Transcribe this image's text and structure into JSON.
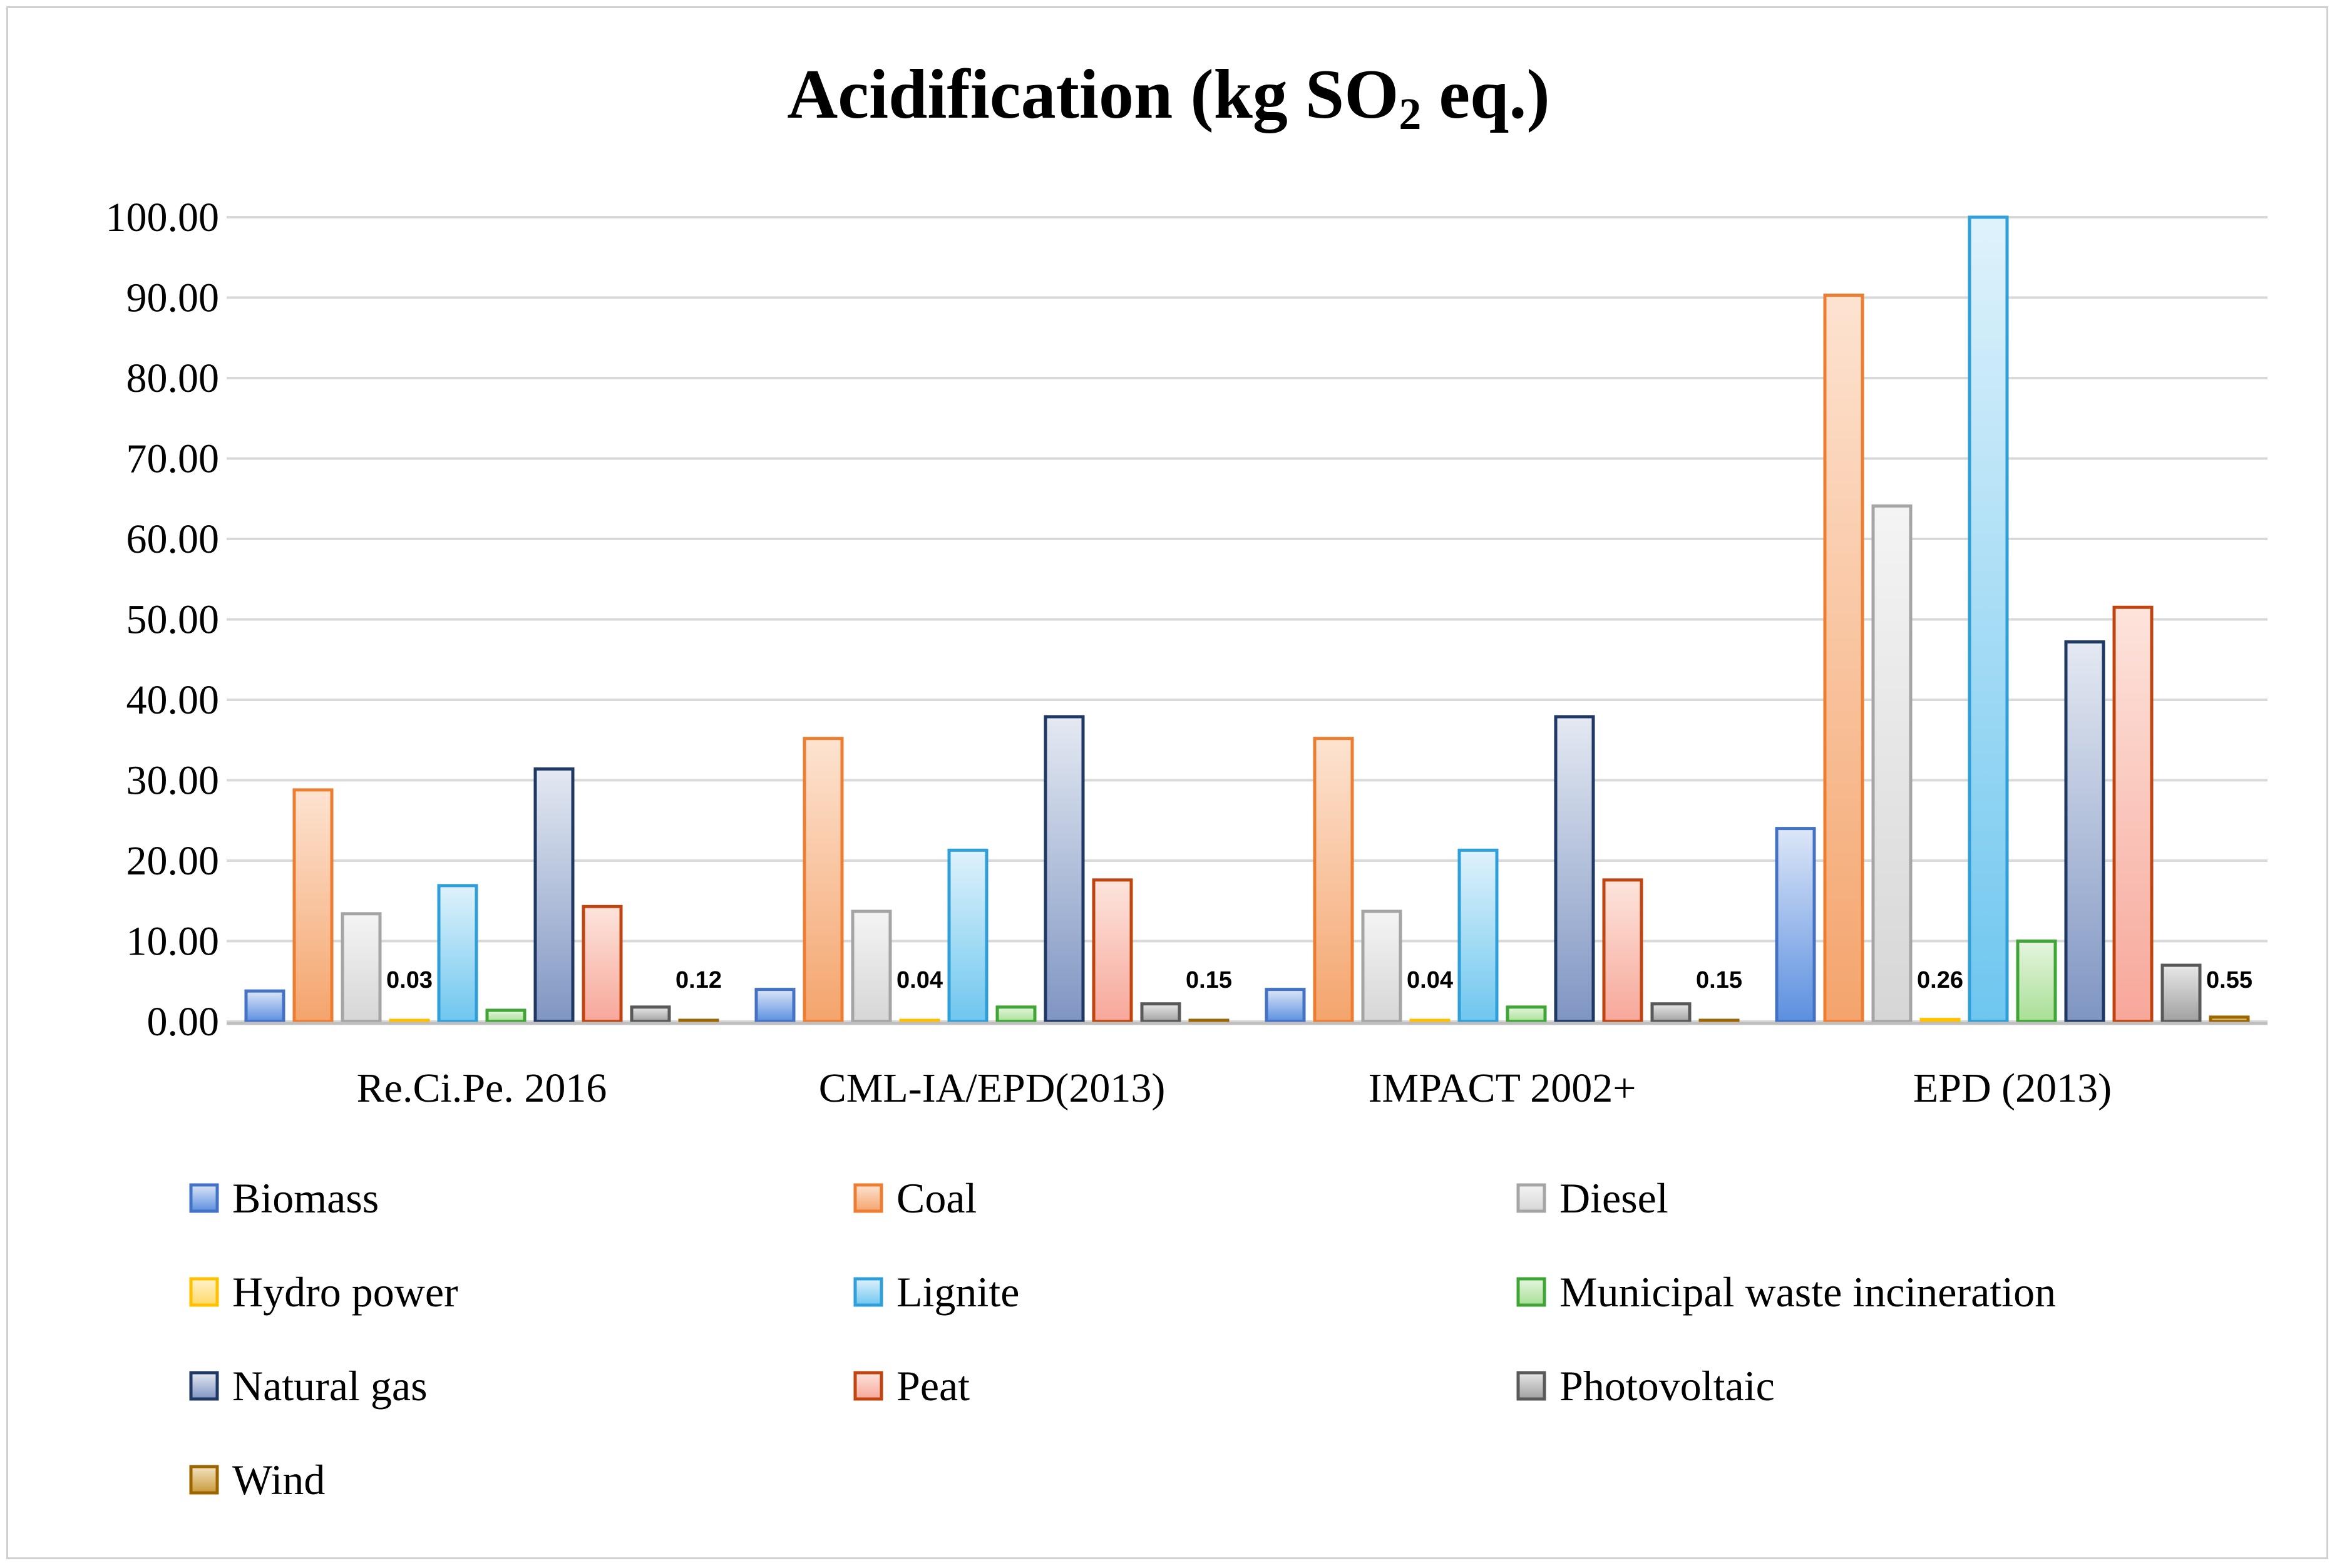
{
  "chart_data": {
    "type": "bar",
    "title_main": "Acidification (kg SO",
    "title_sub": "2",
    "title_tail": " eq.)",
    "xlabel": "",
    "ylabel": "",
    "ylim": [
      0,
      100
    ],
    "ytick_step": 10,
    "ytick_format_decimals": 2,
    "grid": true,
    "legend_position": "bottom",
    "categories": [
      "Re.Ci.Pe. 2016",
      "CML-IA/EPD(2013)",
      "IMPACT 2002+",
      "EPD (2013)"
    ],
    "series": [
      {
        "name": "Biomass",
        "values": [
          3.8,
          4.0,
          4.0,
          24.0
        ],
        "color": "#4472c4",
        "fill_top": "#dce6f7",
        "fill_bottom": "#5b8fe0"
      },
      {
        "name": "Coal",
        "values": [
          28.8,
          35.2,
          35.2,
          90.3
        ],
        "color": "#ed7d31",
        "fill_top": "#fde3d1",
        "fill_bottom": "#f4a46c"
      },
      {
        "name": "Diesel",
        "values": [
          13.4,
          13.7,
          13.7,
          64.1
        ],
        "color": "#a5a5a5",
        "fill_top": "#f4f4f4",
        "fill_bottom": "#d6d6d6"
      },
      {
        "name": "Hydro power",
        "values": [
          0.03,
          0.04,
          0.04,
          0.26
        ],
        "color": "#ffc000",
        "fill_top": "#fff2cc",
        "fill_bottom": "#ffd966"
      },
      {
        "name": "Lignite",
        "values": [
          16.9,
          21.3,
          21.3,
          100.0
        ],
        "color": "#2e9fd8",
        "fill_top": "#dff2fb",
        "fill_bottom": "#6ec6ef"
      },
      {
        "name": "Municipal waste incineration",
        "values": [
          1.4,
          1.8,
          1.8,
          10.0
        ],
        "color": "#3fa535",
        "fill_top": "#e6f5e0",
        "fill_bottom": "#a8df95"
      },
      {
        "name": "Natural gas",
        "values": [
          31.4,
          37.9,
          37.9,
          47.2
        ],
        "color": "#1f3864",
        "fill_top": "#e4e9f2",
        "fill_bottom": "#7f95c2"
      },
      {
        "name": "Peat",
        "values": [
          14.3,
          17.6,
          17.6,
          51.5
        ],
        "color": "#c0440f",
        "fill_top": "#fde4dc",
        "fill_bottom": "#f7a79a"
      },
      {
        "name": "Photovoltaic",
        "values": [
          1.8,
          2.2,
          2.2,
          7.0
        ],
        "color": "#595959",
        "fill_top": "#e8e8e8",
        "fill_bottom": "#a0a0a0"
      },
      {
        "name": "Wind",
        "values": [
          0.12,
          0.15,
          0.15,
          0.55
        ],
        "color": "#9c6500",
        "fill_top": "#f3e3c0",
        "fill_bottom": "#c89a3a"
      }
    ],
    "data_labels": [
      {
        "category_index": 0,
        "text": "0.03",
        "series": "Hydro power"
      },
      {
        "category_index": 0,
        "text": "0.12",
        "series": "Wind"
      },
      {
        "category_index": 1,
        "text": "0.04",
        "series": "Hydro power"
      },
      {
        "category_index": 1,
        "text": "0.15",
        "series": "Wind"
      },
      {
        "category_index": 2,
        "text": "0.04",
        "series": "Hydro power"
      },
      {
        "category_index": 2,
        "text": "0.15",
        "series": "Wind"
      },
      {
        "category_index": 3,
        "text": "0.26",
        "series": "Hydro power"
      },
      {
        "category_index": 3,
        "text": "0.55",
        "series": "Wind"
      }
    ]
  }
}
